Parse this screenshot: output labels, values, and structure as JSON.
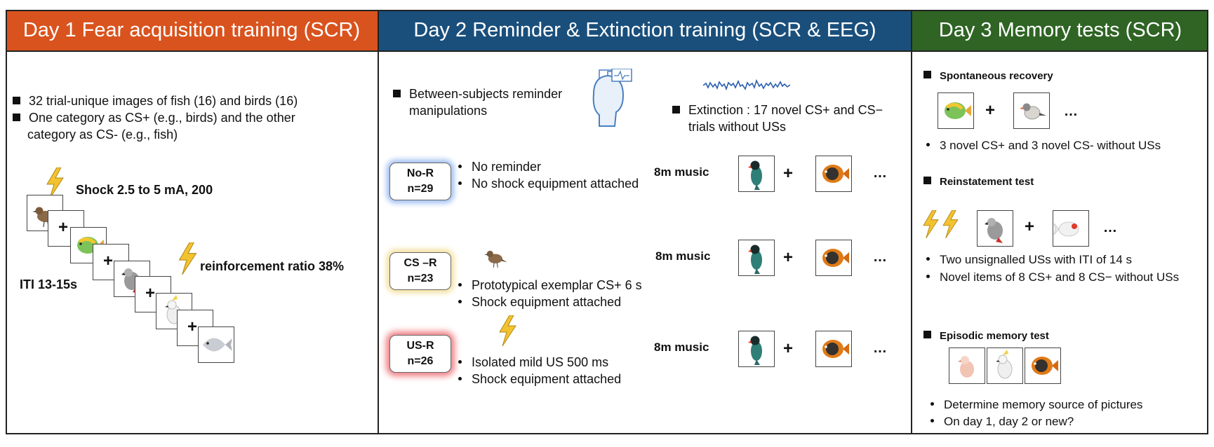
{
  "day1": {
    "header": "Day 1 Fear acquisition training (SCR)",
    "bullets": [
      "32 trial-unique images of fish (16) and birds (16)",
      "One category as CS+ (e.g., birds) and the other",
      "category as CS- (e.g., fish)"
    ],
    "shock_label": "Shock 2.5 to 5 mA, 200",
    "iti_label": "ITI 13-15s",
    "reinforcement_label": "reinforcement ratio 38%",
    "plus": "+"
  },
  "day2": {
    "header": "Day 2 Reminder & Extinction training (SCR & EEG)",
    "reminder_title_1": "Between-subjects reminder",
    "reminder_title_2": "manipulations",
    "extinction_1": "Extinction : 17 novel CS+ and CS−",
    "extinction_2": "trials without USs",
    "groups": [
      {
        "name": "No-R",
        "n": "n=29",
        "bullets": [
          "No reminder",
          "No shock equipment attached"
        ],
        "music": "8m music"
      },
      {
        "name": "CS –R",
        "n": "n=23",
        "bullets": [
          "Prototypical exemplar CS+ 6 s",
          "Shock equipment attached"
        ],
        "music": "8m music"
      },
      {
        "name": "US-R",
        "n": "n=26",
        "bullets": [
          "Isolated mild US 500 ms",
          "Shock equipment attached"
        ],
        "music": "8m music"
      }
    ],
    "plus": "+",
    "ellipsis": "…"
  },
  "day3": {
    "header": "Day 3 Memory tests (SCR)",
    "spontaneous": {
      "title": "Spontaneous recovery",
      "bullet": "3 novel CS+ and 3 novel CS- without USs"
    },
    "reinstatement": {
      "title": "Reinstatement test",
      "bullets": [
        "Two unsignalled USs with ITI of 14 s",
        "Novel items of 8 CS+ and 8 CS− without USs"
      ]
    },
    "episodic": {
      "title": "Episodic memory test",
      "bullets": [
        "Determine memory source of pictures",
        "On day 1, day 2 or new?"
      ]
    },
    "plus": "+",
    "ellipsis": "…"
  },
  "colors": {
    "day1": "#d9531e",
    "day2": "#1a4f7c",
    "day3": "#2f6424",
    "bolt": "#f2c230"
  }
}
